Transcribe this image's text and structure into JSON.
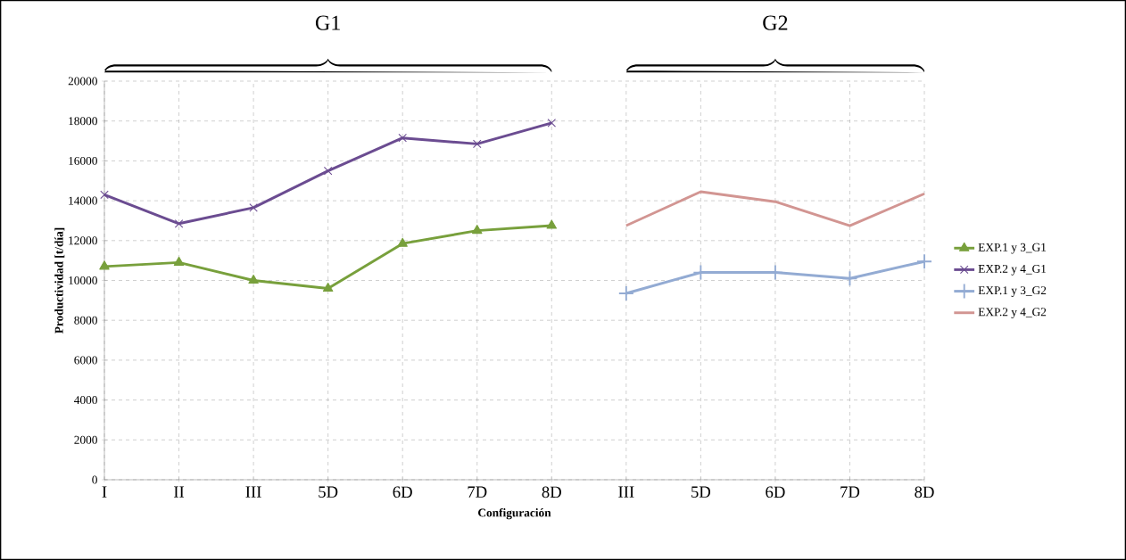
{
  "chart_data": {
    "type": "line",
    "xlabel": "Configuración",
    "ylabel": "Productividad [t/día]",
    "categories": [
      "I",
      "II",
      "III",
      "5D",
      "6D",
      "7D",
      "8D",
      "III",
      "5D",
      "6D",
      "7D",
      "8D"
    ],
    "ylim": [
      0,
      20000
    ],
    "yticks": [
      0,
      2000,
      4000,
      6000,
      8000,
      10000,
      12000,
      14000,
      16000,
      18000,
      20000
    ],
    "grid": true,
    "legend": "right",
    "line_style": "solid",
    "annotations": [
      "G1",
      "G2"
    ],
    "series": [
      {
        "name": "EXP.1 y 3_G1",
        "color": "#78a03c",
        "marker": "triangle",
        "values": [
          10700,
          10900,
          10000,
          9600,
          11850,
          12500,
          12750,
          null,
          null,
          null,
          null,
          null
        ]
      },
      {
        "name": "EXP.2 y 4_G1",
        "color": "#6b4c91",
        "marker": "cross",
        "values": [
          14300,
          12850,
          13650,
          15500,
          17150,
          16850,
          17900,
          null,
          null,
          null,
          null,
          null
        ]
      },
      {
        "name": "EXP.1 y 3_G2",
        "color": "#93abd3",
        "marker": "plus",
        "values": [
          null,
          null,
          null,
          null,
          null,
          null,
          null,
          9350,
          10400,
          10400,
          10100,
          10950
        ]
      },
      {
        "name": "EXP.2 y 4_G2",
        "color": "#d29592",
        "marker": "none",
        "values": [
          null,
          null,
          null,
          null,
          null,
          null,
          null,
          12750,
          14450,
          13950,
          12750,
          14350
        ]
      }
    ]
  }
}
